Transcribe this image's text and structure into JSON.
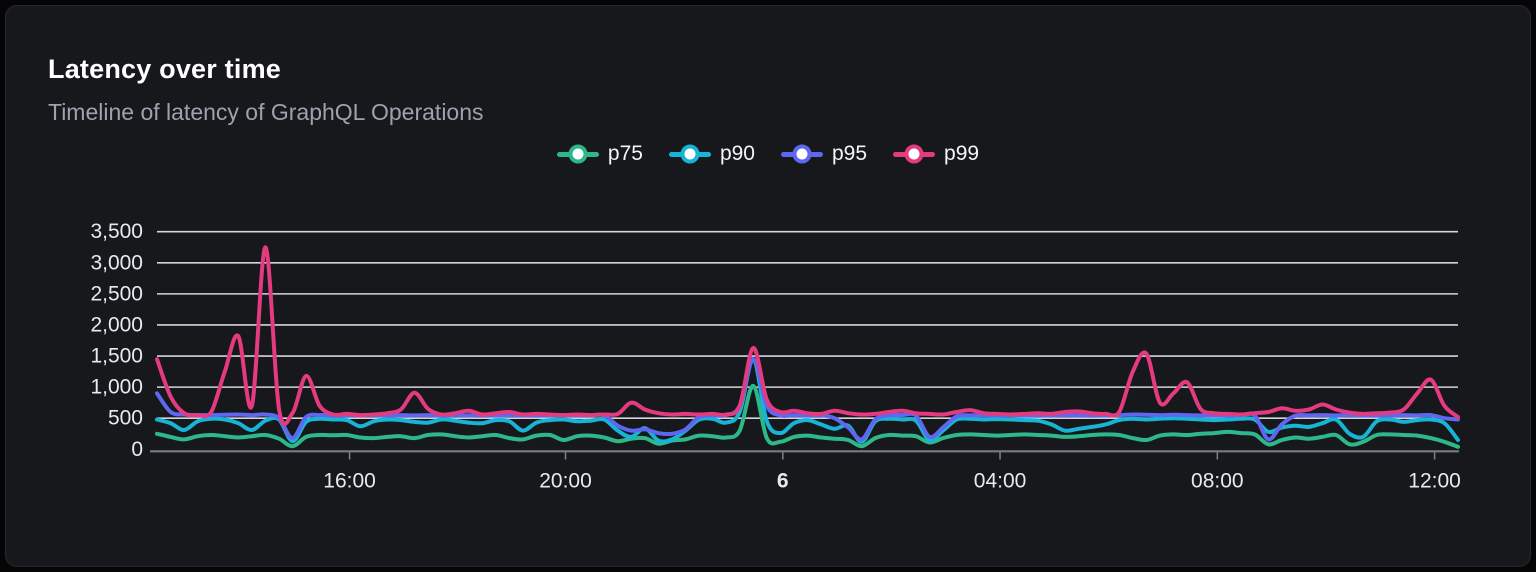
{
  "panel": {
    "title": "Latency over time",
    "subtitle": "Timeline of latency of GraphQL Operations"
  },
  "colors": {
    "page_bg": "#050506",
    "card_bg": "#16181c",
    "card_border": "#272b31",
    "title_text": "#ffffff",
    "subtitle_text": "#9ca3ae",
    "grid_line": "#e3e6ed",
    "axis_line": "#767c86",
    "axis_label": "#e7eaf0",
    "legend_text": "#f3f5f7"
  },
  "chart_data": {
    "type": "line",
    "title": "Latency over time",
    "xlabel": "",
    "ylabel": "",
    "smooth": true,
    "grid": true,
    "legend_position": "top-center",
    "y": {
      "min": 0,
      "max": 3500,
      "step": 500,
      "tick_labels": [
        "0",
        "500",
        "1,000",
        "1,500",
        "2,000",
        "2,500",
        "3,000",
        "3,500"
      ]
    },
    "x_ticks": {
      "labels": [
        "16:00",
        "20:00",
        "6",
        "04:00",
        "08:00",
        "12:00"
      ],
      "fractions": [
        0.148,
        0.314,
        0.481,
        0.648,
        0.815,
        0.982
      ],
      "bold_index": 2
    },
    "x_span_note": "points evenly spaced ~every 15 min from ~12:25 to ~12:25 next day",
    "series": [
      {
        "name": "p75",
        "color": "#2eb88a",
        "values": [
          250,
          200,
          160,
          210,
          230,
          210,
          190,
          210,
          230,
          170,
          50,
          200,
          230,
          225,
          230,
          190,
          180,
          200,
          210,
          180,
          230,
          240,
          210,
          190,
          210,
          230,
          180,
          160,
          220,
          230,
          150,
          210,
          220,
          190,
          130,
          170,
          180,
          90,
          140,
          160,
          220,
          210,
          190,
          300,
          1020,
          180,
          120,
          200,
          220,
          190,
          170,
          150,
          50,
          180,
          230,
          220,
          210,
          110,
          180,
          230,
          240,
          230,
          220,
          230,
          240,
          230,
          220,
          200,
          210,
          230,
          240,
          230,
          180,
          150,
          220,
          240,
          230,
          250,
          260,
          280,
          260,
          240,
          80,
          150,
          190,
          170,
          200,
          230,
          80,
          120,
          230,
          240,
          230,
          220,
          180,
          120,
          40
        ]
      },
      {
        "name": "p90",
        "color": "#17b4d6",
        "values": [
          480,
          420,
          310,
          450,
          490,
          480,
          420,
          310,
          460,
          480,
          130,
          440,
          490,
          480,
          470,
          370,
          450,
          480,
          470,
          440,
          430,
          480,
          460,
          430,
          420,
          470,
          450,
          300,
          430,
          470,
          480,
          450,
          460,
          480,
          300,
          200,
          340,
          140,
          160,
          300,
          480,
          490,
          430,
          600,
          1450,
          450,
          260,
          420,
          470,
          400,
          330,
          380,
          120,
          450,
          490,
          480,
          460,
          150,
          300,
          480,
          490,
          480,
          485,
          480,
          470,
          460,
          400,
          300,
          330,
          360,
          400,
          470,
          490,
          480,
          490,
          500,
          490,
          480,
          470,
          480,
          490,
          480,
          280,
          350,
          380,
          360,
          420,
          480,
          250,
          200,
          450,
          480,
          440,
          470,
          480,
          420,
          150
        ]
      },
      {
        "name": "p95",
        "color": "#5f66f0",
        "values": [
          900,
          600,
          560,
          550,
          550,
          555,
          560,
          550,
          560,
          500,
          180,
          520,
          550,
          545,
          550,
          545,
          550,
          545,
          550,
          545,
          550,
          545,
          550,
          545,
          550,
          545,
          550,
          545,
          550,
          545,
          550,
          545,
          550,
          545,
          380,
          300,
          320,
          260,
          250,
          320,
          520,
          545,
          550,
          700,
          1450,
          700,
          545,
          550,
          545,
          550,
          500,
          350,
          160,
          480,
          545,
          550,
          545,
          200,
          350,
          530,
          545,
          550,
          545,
          550,
          545,
          550,
          545,
          550,
          545,
          550,
          545,
          550,
          560,
          555,
          550,
          555,
          550,
          545,
          550,
          545,
          550,
          545,
          160,
          400,
          540,
          545,
          550,
          545,
          550,
          545,
          550,
          545,
          550,
          545,
          550,
          500,
          480
        ]
      },
      {
        "name": "p99",
        "color": "#e43a80",
        "values": [
          1450,
          850,
          580,
          550,
          600,
          1250,
          1820,
          700,
          3250,
          650,
          580,
          1180,
          700,
          560,
          570,
          550,
          560,
          580,
          640,
          910,
          650,
          560,
          580,
          620,
          560,
          580,
          600,
          560,
          570,
          560,
          550,
          560,
          550,
          560,
          570,
          750,
          640,
          580,
          560,
          570,
          560,
          570,
          560,
          700,
          1630,
          800,
          600,
          620,
          580,
          570,
          620,
          580,
          560,
          570,
          600,
          620,
          580,
          570,
          560,
          600,
          630,
          580,
          570,
          560,
          570,
          580,
          570,
          600,
          610,
          580,
          570,
          600,
          1250,
          1540,
          750,
          900,
          1080,
          650,
          580,
          570,
          560,
          580,
          600,
          660,
          620,
          640,
          720,
          640,
          590,
          570,
          580,
          590,
          640,
          900,
          1120,
          700,
          520
        ]
      }
    ]
  }
}
